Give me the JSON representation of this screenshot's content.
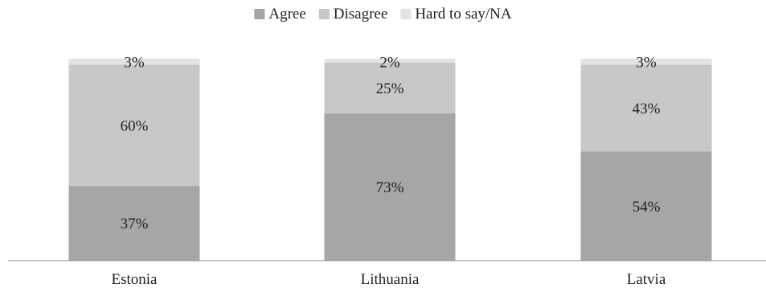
{
  "chart_data": {
    "type": "bar",
    "stacked": true,
    "normalized_percent": true,
    "categories": [
      "Estonia",
      "Lithuania",
      "Latvia"
    ],
    "series": [
      {
        "name": "Agree",
        "values": [
          37,
          73,
          54
        ],
        "color": "#a6a6a6"
      },
      {
        "name": "Disagree",
        "values": [
          60,
          25,
          43
        ],
        "color": "#c8c8c8"
      },
      {
        "name": "Hard to say/NA",
        "values": [
          3,
          2,
          3
        ],
        "color": "#e3e3e3"
      }
    ],
    "value_labels": [
      [
        "37%",
        "73%",
        "54%"
      ],
      [
        "60%",
        "25%",
        "43%"
      ],
      [
        "3%",
        "2%",
        "3%"
      ]
    ],
    "ylim": [
      0,
      100
    ],
    "legend_position": "top-center",
    "grid": false
  }
}
